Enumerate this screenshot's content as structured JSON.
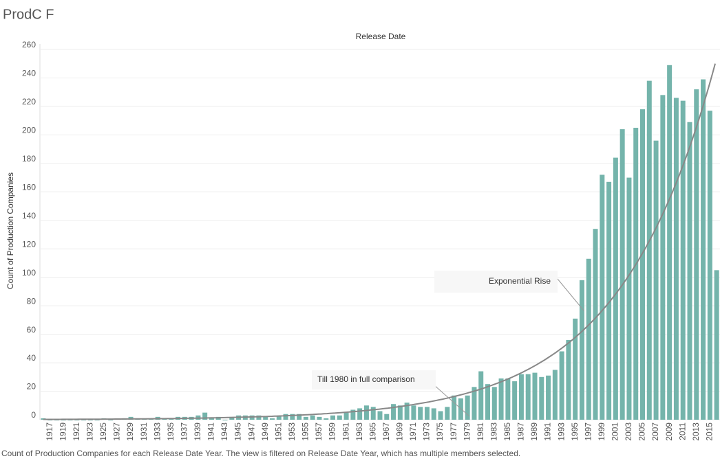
{
  "chart_data": {
    "type": "bar",
    "title": "ProdC F",
    "header": "Release Date",
    "y_label": "Count of Production Companies",
    "caption": "Count of Production Companies for each Release Date Year. The view is filtered on Release Date Year, which has multiple members selected.",
    "annotations": [
      "Exponential Rise",
      "Till 1980 in full comparison"
    ],
    "color": "#74b4ab",
    "grid": true,
    "ylim": [
      0,
      260
    ],
    "yticks": [
      0,
      20,
      40,
      60,
      80,
      100,
      120,
      140,
      160,
      180,
      200,
      220,
      240,
      260
    ],
    "categories": [
      null,
      "1917",
      null,
      "1919",
      null,
      "1921",
      null,
      "1923",
      null,
      "1925",
      null,
      "1927",
      null,
      "1929",
      null,
      "1931",
      null,
      "1933",
      null,
      "1935",
      null,
      "1937",
      null,
      "1939",
      null,
      "1941",
      null,
      "1943",
      null,
      "1945",
      null,
      "1947",
      null,
      "1949",
      null,
      "1951",
      null,
      "1953",
      null,
      "1955",
      null,
      "1957",
      null,
      "1959",
      null,
      "1961",
      null,
      "1963",
      null,
      "1965",
      null,
      "1967",
      null,
      "1969",
      null,
      "1971",
      null,
      "1973",
      null,
      "1975",
      null,
      "1977",
      null,
      "1979",
      null,
      "1981",
      null,
      "1983",
      null,
      "1985",
      null,
      "1987",
      null,
      "1989",
      null,
      "1991",
      null,
      "1993",
      null,
      "1995",
      null,
      "1997",
      null,
      "1999",
      null,
      "2001",
      null,
      "2003",
      null,
      "2005",
      null,
      "2007",
      null,
      "2009",
      null,
      "2011",
      null,
      "2013",
      null,
      "2015",
      null
    ],
    "values": [
      1,
      0,
      0,
      0,
      0,
      0,
      0,
      0,
      0,
      1,
      0,
      1,
      1,
      2,
      1,
      1,
      1,
      2,
      1,
      1,
      2,
      2,
      2,
      3,
      5,
      1,
      2,
      0,
      2,
      3,
      3,
      3,
      3,
      2,
      1,
      3,
      4,
      4,
      4,
      2,
      3,
      2,
      1,
      3,
      3,
      5,
      7,
      8,
      10,
      9,
      6,
      4,
      11,
      10,
      12,
      10,
      9,
      9,
      8,
      6,
      9,
      17,
      15,
      17,
      23,
      34,
      25,
      23,
      29,
      29,
      27,
      32,
      32,
      33,
      30,
      31,
      35,
      48,
      56,
      71,
      98,
      113,
      134,
      172,
      167,
      184,
      204,
      170,
      205,
      218,
      238,
      196,
      228,
      249,
      226,
      224,
      209,
      232,
      239,
      217,
      105
    ]
  }
}
